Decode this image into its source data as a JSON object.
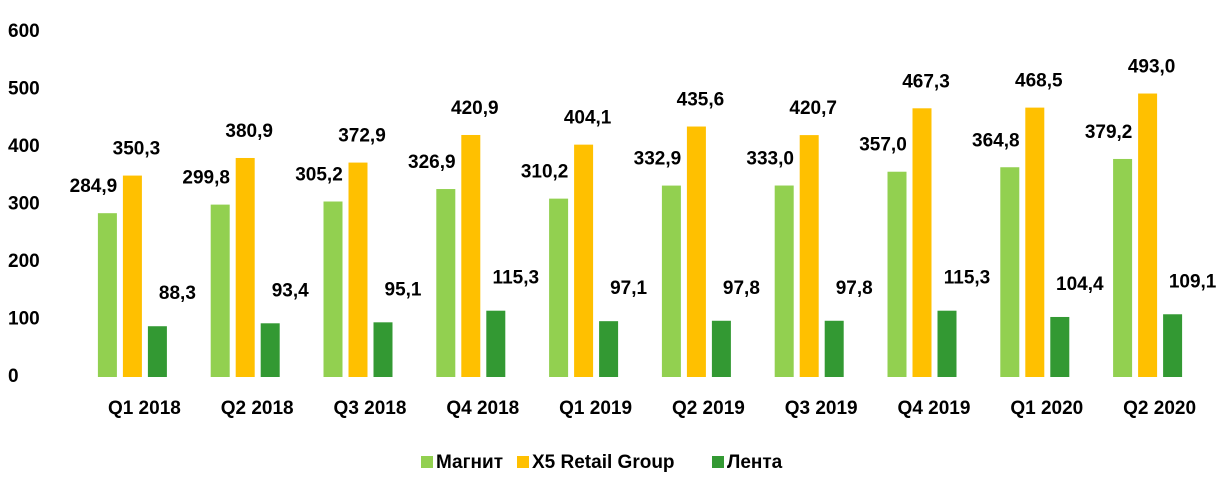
{
  "chart_data": {
    "type": "bar",
    "categories": [
      "Q1 2018",
      "Q2 2018",
      "Q3 2018",
      "Q4 2018",
      "Q1 2019",
      "Q2 2019",
      "Q3 2019",
      "Q4 2019",
      "Q1 2020",
      "Q2 2020"
    ],
    "series": [
      {
        "name": "Магнит",
        "color": "#92d050",
        "values": [
          284.9,
          299.8,
          305.2,
          326.9,
          310.2,
          332.9,
          333.0,
          357.0,
          364.8,
          379.2
        ],
        "value_labels": [
          "284,9",
          "299,8",
          "305,2",
          "326,9",
          "310,2",
          "332,9",
          "333,0",
          "357,0",
          "364,8",
          "379,2"
        ]
      },
      {
        "name": "X5 Retail Group",
        "color": "#ffc000",
        "values": [
          350.3,
          380.9,
          372.9,
          420.9,
          404.1,
          435.6,
          420.7,
          467.3,
          468.5,
          493.0
        ],
        "value_labels": [
          "350,3",
          "380,9",
          "372,9",
          "420,9",
          "404,1",
          "435,6",
          "420,7",
          "467,3",
          "468,5",
          "493,0"
        ]
      },
      {
        "name": "Лента",
        "color": "#339933",
        "values": [
          88.3,
          93.4,
          95.1,
          115.3,
          97.1,
          97.8,
          97.8,
          115.3,
          104.4,
          109.1
        ],
        "value_labels": [
          "88,3",
          "93,4",
          "95,1",
          "115,3",
          "97,1",
          "97,8",
          "97,8",
          "115,3",
          "104,4",
          "109,1"
        ]
      }
    ],
    "ylim": [
      0,
      600
    ],
    "yticks": [
      0,
      100,
      200,
      300,
      400,
      500,
      600
    ],
    "grid": false,
    "legend": "bottom"
  }
}
